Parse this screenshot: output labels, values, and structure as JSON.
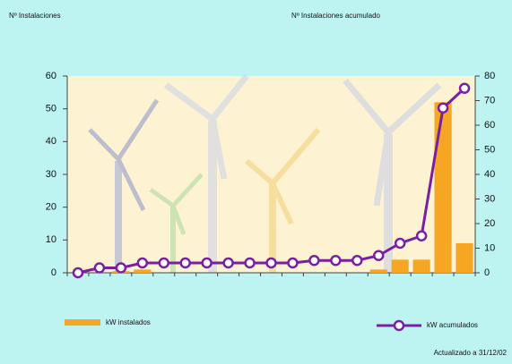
{
  "chart_data": {
    "type": "bar",
    "y_label": "Nº Instalaciones",
    "y2_label": "Nº Instalaciones acumulado",
    "footnote": "Actualizado a 31/12/02",
    "categories": [
      null,
      null,
      null,
      null,
      null,
      null,
      null,
      null,
      null,
      null,
      null,
      null,
      null,
      null,
      null,
      null,
      null,
      null,
      null
    ],
    "series": [
      {
        "name": "kW instalados",
        "type": "bar",
        "color": "#f5a623",
        "values": [
          0,
          0,
          0.5,
          1,
          0,
          0,
          0,
          0,
          0,
          0,
          0,
          0,
          0,
          0,
          1,
          4,
          4,
          52,
          9
        ]
      },
      {
        "name": "kW acumulados",
        "type": "line",
        "axis": "y2",
        "color": "#7b1fa2",
        "values": [
          0,
          2,
          2,
          4,
          4,
          4,
          4,
          4,
          4,
          4,
          4,
          5,
          5,
          5,
          7,
          12,
          15,
          67,
          75
        ]
      }
    ],
    "ylim": [
      0,
      60
    ],
    "yticks": [
      0,
      10,
      20,
      30,
      40,
      50,
      60
    ],
    "y2lim": [
      0,
      80
    ],
    "y2ticks": [
      0,
      10,
      20,
      30,
      40,
      50,
      60,
      70,
      80
    ],
    "legend": "bottom"
  }
}
